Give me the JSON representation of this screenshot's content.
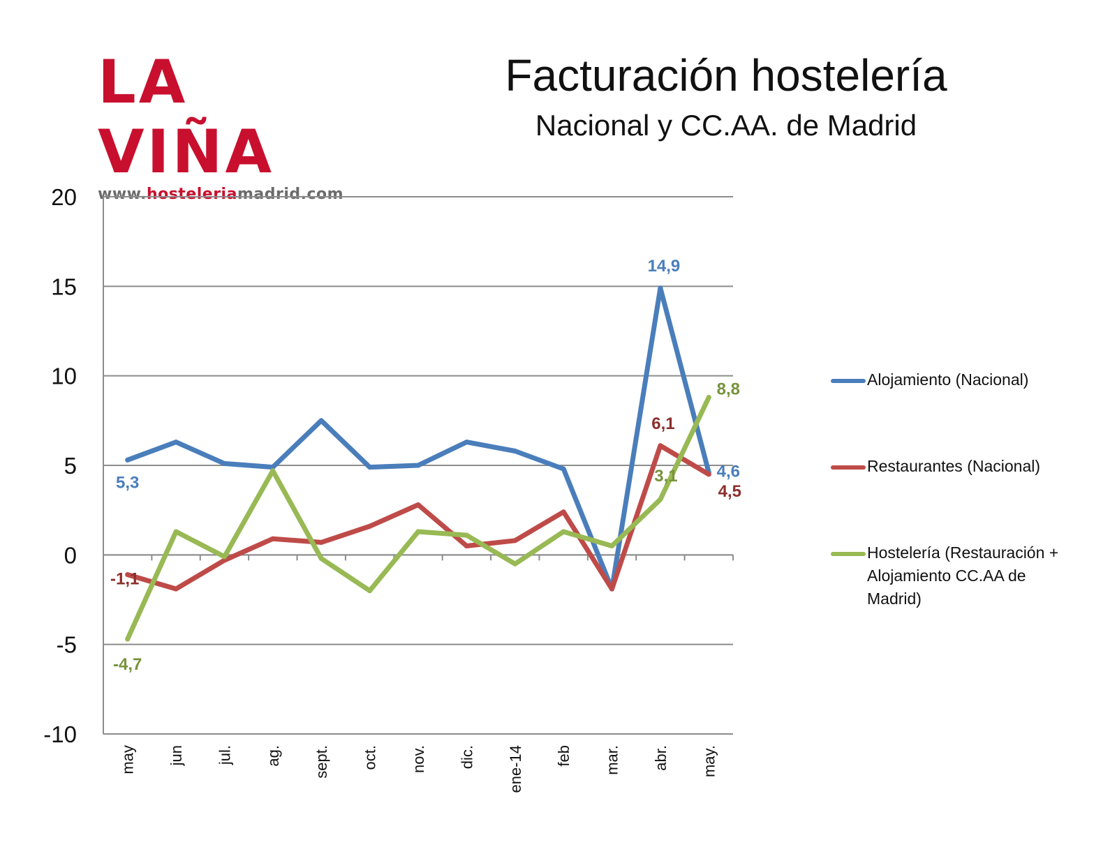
{
  "logo": {
    "main": "LA VIÑA",
    "url_prefix": "www.",
    "url_highlight": "hosteleria",
    "url_suffix": "madrid.com"
  },
  "header": {
    "title": "Facturación hostelería",
    "subtitle": "Nacional y CC.AA. de Madrid"
  },
  "colors": {
    "brand": "#c8102e",
    "alojamiento": "#4a7ebb",
    "restaurantes": "#be4b48",
    "hosteleria": "#98b954"
  },
  "chart_data": {
    "type": "line",
    "categories": [
      "may",
      "jun",
      "jul.",
      "ag.",
      "sept.",
      "oct.",
      "nov.",
      "dic.",
      "ene-14",
      "feb",
      "mar.",
      "abr.",
      "may."
    ],
    "ylim": [
      -10,
      20
    ],
    "yticks": [
      -10,
      -5,
      0,
      5,
      10,
      15,
      20
    ],
    "grid": true,
    "legend_position": "right",
    "series": [
      {
        "name": "Alojamiento (Nacional)",
        "color": "#4a7ebb",
        "label_color": "#4a7ebb",
        "values": [
          5.3,
          6.3,
          5.1,
          4.9,
          7.5,
          4.9,
          5.0,
          6.3,
          5.8,
          4.8,
          -1.9,
          14.9,
          4.6
        ],
        "labels": [
          {
            "index": 0,
            "text": "5,3"
          },
          {
            "index": 11,
            "text": "14,9"
          },
          {
            "index": 12,
            "text": "4,6"
          }
        ]
      },
      {
        "name": "Restaurantes (Nacional)",
        "color": "#be4b48",
        "label_color": "#8b2f2c",
        "values": [
          -1.1,
          -1.9,
          -0.3,
          0.9,
          0.7,
          1.6,
          2.8,
          0.5,
          0.8,
          2.4,
          -1.9,
          6.1,
          4.5
        ],
        "labels": [
          {
            "index": 0,
            "text": "-1,1"
          },
          {
            "index": 11,
            "text": "6,1"
          },
          {
            "index": 12,
            "text": "4,5"
          }
        ]
      },
      {
        "name": "Hostelería (Restauración + Alojamiento CC.AA de Madrid)",
        "color": "#98b954",
        "label_color": "#77933c",
        "values": [
          -4.7,
          1.3,
          -0.1,
          4.7,
          -0.2,
          -2.0,
          1.3,
          1.1,
          -0.5,
          1.3,
          0.5,
          3.1,
          8.8
        ],
        "labels": [
          {
            "index": 0,
            "text": "-4,7"
          },
          {
            "index": 11,
            "text": "3,1"
          },
          {
            "index": 12,
            "text": "8,8"
          }
        ]
      }
    ]
  },
  "legend": {
    "items": [
      {
        "lines": [
          "Alojamiento (Nacional)"
        ],
        "color": "#4a7ebb"
      },
      {
        "lines": [
          "Restaurantes (Nacional)"
        ],
        "color": "#be4b48"
      },
      {
        "lines": [
          "Hostelería (Restauración +",
          "Alojamiento CC.AA de",
          "Madrid)"
        ],
        "color": "#98b954"
      }
    ]
  }
}
